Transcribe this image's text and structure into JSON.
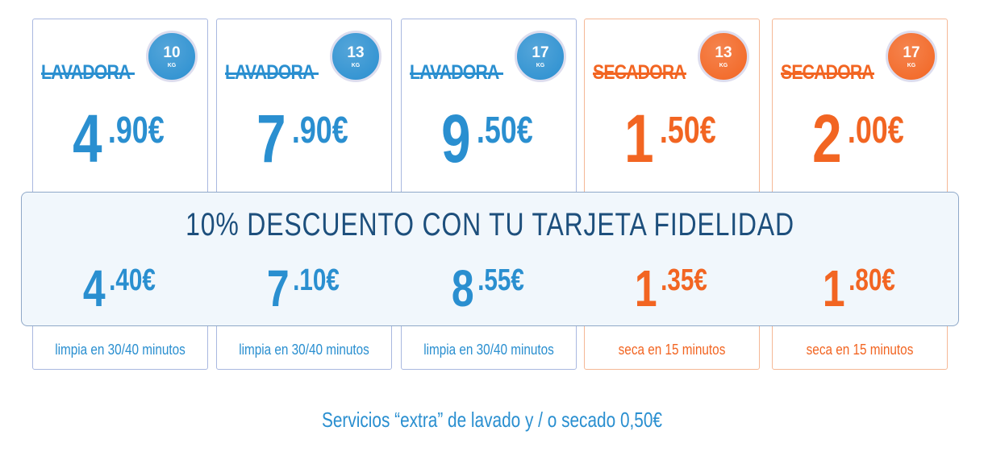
{
  "cards": [
    {
      "kind": "LAVADORA",
      "badge": "10",
      "badge_unit": "KG",
      "price_int": "4",
      "price_dec": ".90€",
      "note": "limpia en 30/40 minutos",
      "color": "#2a8fd0",
      "border": "#a9b8e0"
    },
    {
      "kind": "LAVADORA",
      "badge": "13",
      "badge_unit": "KG",
      "price_int": "7",
      "price_dec": ".90€",
      "note": "limpia en 30/40 minutos",
      "color": "#2a8fd0",
      "border": "#a9b8e0"
    },
    {
      "kind": "LAVADORA",
      "badge": "17",
      "badge_unit": "KG",
      "price_int": "9",
      "price_dec": ".50€",
      "note": "limpia en 30/40 minutos",
      "color": "#2a8fd0",
      "border": "#a9b8e0"
    },
    {
      "kind": "SECADORA",
      "badge": "13",
      "badge_unit": "KG",
      "price_int": "1",
      "price_dec": ".50€",
      "note": "seca en 15 minutos",
      "color": "#f26522",
      "border": "#f5b896"
    },
    {
      "kind": "SECADORA",
      "badge": "17",
      "badge_unit": "KG",
      "price_int": "2",
      "price_dec": ".00€",
      "note": "seca en 15 minutos",
      "color": "#f26522",
      "border": "#f5b896"
    }
  ],
  "discount": {
    "title": "10% DESCUENTO CON TU TARJETA FIDELIDAD",
    "prices": [
      {
        "int": "4",
        "dec": ".40€"
      },
      {
        "int": "7",
        "dec": ".10€"
      },
      {
        "int": "8",
        "dec": ".55€"
      },
      {
        "int": "1",
        "dec": ".35€"
      },
      {
        "int": "1",
        "dec": ".80€"
      }
    ]
  },
  "footer": "Servicios “extra” de lavado y / o secado 0,50€"
}
